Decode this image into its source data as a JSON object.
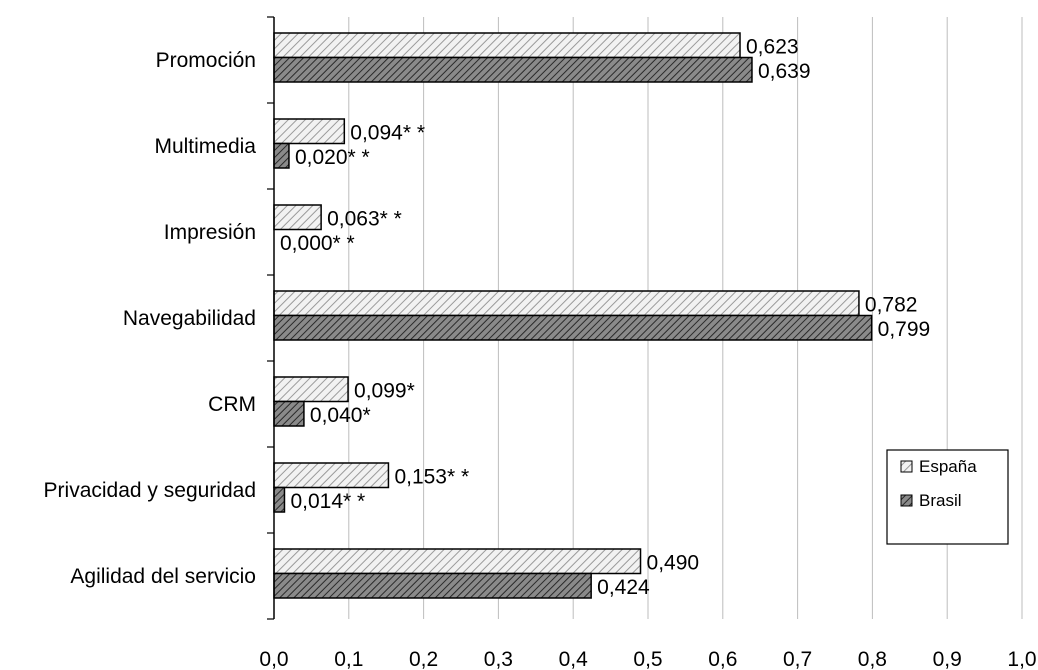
{
  "chart_data": {
    "type": "bar",
    "orientation": "horizontal",
    "categories": [
      "Promoción",
      "Multimedia",
      "Impresión",
      "Navegabilidad",
      "CRM",
      "Privacidad y seguridad",
      "Agilidad del servicio"
    ],
    "series": [
      {
        "name": "España",
        "values": [
          0.623,
          0.094,
          0.063,
          0.782,
          0.099,
          0.153,
          0.49
        ],
        "labels": [
          "0,623",
          "0,094* *",
          "0,063* *",
          "0,782",
          "0,099*",
          "0,153* *",
          "0,490"
        ],
        "fill": "light-diagonal-hatch"
      },
      {
        "name": "Brasil",
        "values": [
          0.639,
          0.02,
          0.0,
          0.799,
          0.04,
          0.014,
          0.424
        ],
        "labels": [
          "0,639",
          "0,020* *",
          "0,000* *",
          "0,799",
          "0,040*",
          "0,014* *",
          "0,424"
        ],
        "fill": "dark-diagonal-hatch"
      }
    ],
    "xlim": [
      0,
      1.0
    ],
    "xticks": [
      "0,0",
      "0,1",
      "0,2",
      "0,3",
      "0,4",
      "0,5",
      "0,6",
      "0,7",
      "0,8",
      "0,9",
      "1,0"
    ],
    "grid": "vertical",
    "legend_position": "bottom-right",
    "title": "",
    "xlabel": "",
    "ylabel": ""
  }
}
